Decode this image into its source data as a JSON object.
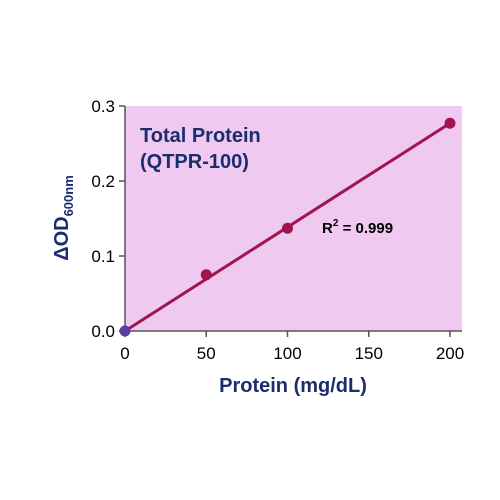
{
  "chart_data": {
    "type": "scatter",
    "title": "Total Protein",
    "subtitle": "(QTPR-100)",
    "xlabel": "Protein (mg/dL)",
    "ylabel_main": "ΔOD",
    "ylabel_sub": "600nm",
    "xlim": [
      0,
      200
    ],
    "ylim": [
      0,
      0.3
    ],
    "xticks": [
      0,
      50,
      100,
      150,
      200
    ],
    "yticks": [
      0.0,
      0.1,
      0.2,
      0.3
    ],
    "xtick_labels": [
      "0",
      "50",
      "100",
      "150",
      "200"
    ],
    "ytick_labels": [
      "0.0",
      "0.1",
      "0.2",
      "0.3"
    ],
    "grid": false,
    "series": [
      {
        "x": [
          0,
          50,
          100,
          200
        ],
        "y": [
          0.0,
          0.075,
          0.137,
          0.277
        ],
        "color": "#a0154f"
      }
    ],
    "fit_line": {
      "x": [
        0,
        200
      ],
      "y": [
        0.0,
        0.277
      ],
      "color": "#a0154f"
    },
    "annotation": {
      "label": "R",
      "superscript": "2",
      "value": " = 0.999"
    },
    "colors": {
      "plot_background": "#efc9f0",
      "axis_title": "#1a2d6e",
      "first_point": "#5a3fa0"
    }
  }
}
